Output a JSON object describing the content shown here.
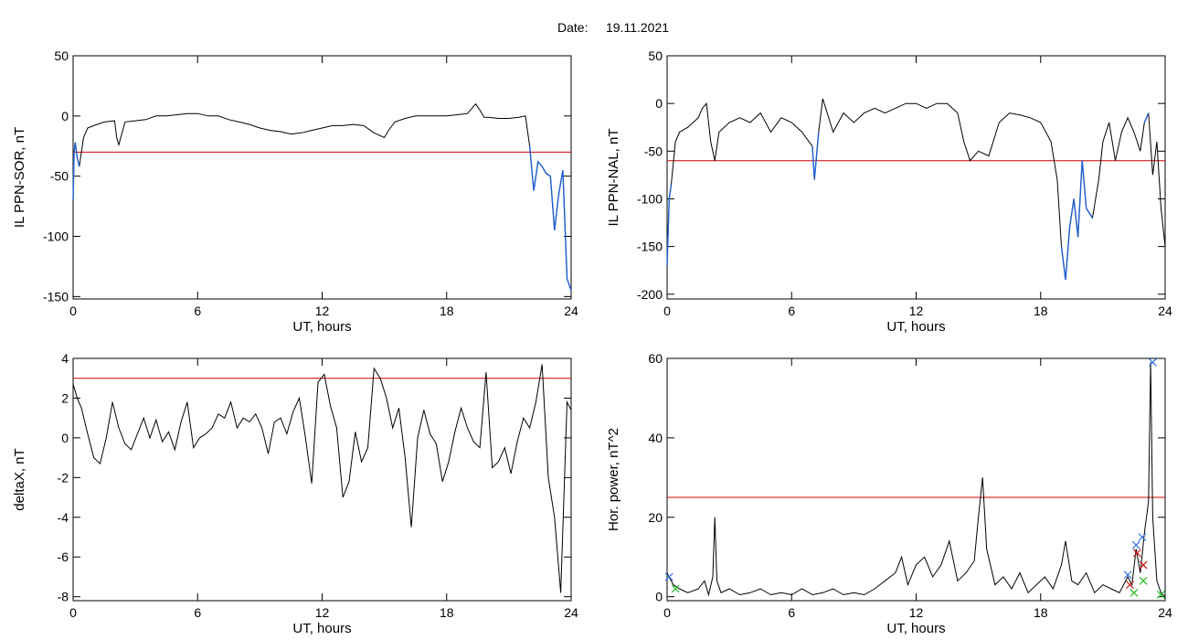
{
  "header": {
    "date_label": "Date:",
    "date_value": "19.11.2021"
  },
  "colors": {
    "trace": "#000000",
    "threshold": "#d40000",
    "highlight": "#1f5fd0",
    "marker_blue": "#2f6fe0",
    "marker_red": "#d01010",
    "marker_green": "#22c022"
  },
  "chart_data": [
    {
      "id": "sor",
      "type": "line",
      "ylabel": "IL PPN-SOR, nT",
      "xlabel": "UT, hours",
      "xlim": [
        0,
        24
      ],
      "ylim": [
        -152,
        50
      ],
      "xticks": [
        "0",
        "6",
        "12",
        "18",
        "24"
      ],
      "yticks": [
        "50",
        "0",
        "-50",
        "-100",
        "-150"
      ],
      "ytick_values": [
        50,
        0,
        -50,
        -100,
        -150
      ],
      "threshold": -30,
      "series": [
        {
          "x": [
            0,
            0.05,
            0.1,
            0.2,
            0.3,
            0.5,
            0.7,
            1.0,
            1.5,
            2.0,
            2.1,
            2.2,
            2.5,
            3.0,
            3.5,
            4.0,
            4.5,
            5.0,
            5.5,
            6.0,
            6.5,
            7.0,
            7.5,
            8.0,
            8.5,
            9.0,
            9.5,
            10.0,
            10.5,
            11.0,
            11.5,
            12.0,
            12.5,
            13.0,
            13.5,
            14.0,
            14.5,
            15.0,
            15.2,
            15.5,
            16.0,
            16.5,
            17.0,
            17.5,
            18.0,
            18.5,
            19.0,
            19.4,
            19.6,
            19.8,
            20.0,
            20.5,
            21.0,
            21.5,
            21.8,
            22.0,
            22.2,
            22.4,
            22.6,
            22.8,
            23.0,
            23.2,
            23.4,
            23.6,
            23.8,
            24.0
          ],
          "y": [
            -70,
            -30,
            -22,
            -35,
            -42,
            -18,
            -10,
            -8,
            -5,
            -4,
            -18,
            -24,
            -5,
            -4,
            -3,
            0,
            0,
            1,
            2,
            2,
            0,
            0,
            -3,
            -5,
            -7,
            -10,
            -12,
            -13,
            -15,
            -14,
            -12,
            -10,
            -8,
            -8,
            -7,
            -8,
            -14,
            -18,
            -12,
            -5,
            -2,
            0,
            0,
            0,
            0,
            1,
            2,
            10,
            5,
            -1,
            -1,
            -2,
            -2,
            -1,
            0,
            -25,
            -62,
            -38,
            -42,
            -48,
            -50,
            -95,
            -65,
            -45,
            -135,
            -145
          ]
        }
      ],
      "highlight_ranges": [
        [
          0,
          0.3
        ],
        [
          21.9,
          24
        ]
      ]
    },
    {
      "id": "nal",
      "type": "line",
      "ylabel": "IL PPN-NAL, nT",
      "xlabel": "UT, hours",
      "xlim": [
        0,
        24
      ],
      "ylim": [
        -205,
        50
      ],
      "xticks": [
        "0",
        "6",
        "12",
        "18",
        "24"
      ],
      "yticks": [
        "50",
        "0",
        "-50",
        "-100",
        "-150",
        "-200"
      ],
      "ytick_values": [
        50,
        0,
        -50,
        -100,
        -150,
        -200
      ],
      "threshold": -60,
      "series": [
        {
          "x": [
            0,
            0.1,
            0.2,
            0.4,
            0.6,
            1.0,
            1.5,
            1.7,
            1.9,
            2.1,
            2.3,
            2.5,
            3.0,
            3.5,
            4.0,
            4.5,
            5.0,
            5.5,
            6.0,
            6.5,
            7.0,
            7.1,
            7.3,
            7.5,
            8.0,
            8.5,
            9.0,
            9.5,
            10.0,
            10.5,
            11.0,
            11.5,
            12.0,
            12.5,
            13.0,
            13.5,
            14.0,
            14.3,
            14.6,
            15.0,
            15.5,
            16.0,
            16.5,
            17.0,
            17.5,
            18.0,
            18.5,
            18.8,
            19.0,
            19.2,
            19.4,
            19.6,
            19.8,
            20.0,
            20.2,
            20.5,
            20.8,
            21.0,
            21.3,
            21.6,
            21.9,
            22.2,
            22.5,
            22.8,
            23.0,
            23.2,
            23.4,
            23.6,
            23.8,
            24.0
          ],
          "y": [
            -170,
            -100,
            -85,
            -40,
            -30,
            -25,
            -15,
            -5,
            0,
            -40,
            -60,
            -30,
            -20,
            -15,
            -20,
            -10,
            -30,
            -15,
            -20,
            -30,
            -45,
            -80,
            -30,
            5,
            -30,
            -10,
            -20,
            -10,
            -5,
            -10,
            -5,
            0,
            0,
            -5,
            0,
            0,
            -10,
            -40,
            -60,
            -50,
            -55,
            -20,
            -10,
            -12,
            -15,
            -20,
            -40,
            -80,
            -150,
            -185,
            -130,
            -100,
            -140,
            -60,
            -110,
            -120,
            -80,
            -40,
            -20,
            -60,
            -30,
            -15,
            -30,
            -50,
            -20,
            -10,
            -75,
            -40,
            -110,
            -150
          ]
        }
      ],
      "highlight_ranges": [
        [
          0,
          0.3
        ],
        [
          7.0,
          7.4
        ],
        [
          18.9,
          20.6
        ],
        [
          22.9,
          23.2
        ]
      ]
    },
    {
      "id": "deltax",
      "type": "line",
      "ylabel": "deltaX, nT",
      "xlabel": "UT, hours",
      "xlim": [
        0,
        24
      ],
      "ylim": [
        -8.2,
        4
      ],
      "xticks": [
        "0",
        "6",
        "12",
        "18",
        "24"
      ],
      "yticks": [
        "4",
        "2",
        "0",
        "-2",
        "-4",
        "-6",
        "-8"
      ],
      "ytick_values": [
        4,
        2,
        0,
        -2,
        -4,
        -6,
        -8
      ],
      "threshold": 3,
      "series": [
        {
          "x": [
            0,
            0.2,
            0.4,
            0.7,
            1.0,
            1.3,
            1.6,
            1.9,
            2.2,
            2.5,
            2.8,
            3.1,
            3.4,
            3.7,
            4.0,
            4.3,
            4.6,
            4.9,
            5.2,
            5.5,
            5.8,
            6.1,
            6.4,
            6.7,
            7.0,
            7.3,
            7.6,
            7.9,
            8.2,
            8.5,
            8.8,
            9.1,
            9.4,
            9.7,
            10.0,
            10.3,
            10.6,
            10.9,
            11.2,
            11.5,
            11.8,
            12.1,
            12.4,
            12.7,
            13.0,
            13.3,
            13.6,
            13.9,
            14.2,
            14.5,
            14.8,
            15.1,
            15.4,
            15.7,
            16.0,
            16.3,
            16.6,
            16.9,
            17.2,
            17.5,
            17.8,
            18.1,
            18.4,
            18.7,
            19.0,
            19.3,
            19.6,
            19.9,
            20.2,
            20.5,
            20.8,
            21.1,
            21.4,
            21.7,
            22.0,
            22.3,
            22.6,
            22.9,
            23.2,
            23.5,
            23.8,
            24.0
          ],
          "y": [
            2.7,
            2.0,
            1.5,
            0.2,
            -1.0,
            -1.3,
            0.0,
            1.8,
            0.5,
            -0.3,
            -0.6,
            0.2,
            1.0,
            0.0,
            0.9,
            -0.2,
            0.3,
            -0.6,
            0.8,
            1.8,
            -0.5,
            0.0,
            0.2,
            0.5,
            1.2,
            1.0,
            1.8,
            0.5,
            1.0,
            0.8,
            1.2,
            0.5,
            -0.8,
            0.8,
            1.0,
            0.2,
            1.3,
            2.0,
            0.0,
            -2.3,
            2.8,
            3.2,
            1.6,
            0.5,
            -3.0,
            -2.2,
            0.3,
            -1.2,
            -0.5,
            3.5,
            3.0,
            2.0,
            0.5,
            1.5,
            -1.0,
            -4.5,
            0.0,
            1.4,
            0.2,
            -0.3,
            -2.2,
            -1.2,
            0.3,
            1.5,
            0.5,
            -0.2,
            -0.5,
            3.3,
            -1.5,
            -1.2,
            -0.5,
            -1.8,
            -0.2,
            1.0,
            0.5,
            1.8,
            3.7,
            -2.0,
            -4.0,
            -7.8,
            1.8,
            1.4
          ]
        }
      ],
      "highlight_ranges": []
    },
    {
      "id": "power",
      "type": "line",
      "ylabel": "Hor. power, nT^2",
      "xlabel": "UT, hours",
      "xlim": [
        0,
        24
      ],
      "ylim": [
        -1,
        60
      ],
      "xticks": [
        "0",
        "6",
        "12",
        "18",
        "24"
      ],
      "yticks": [
        "60",
        "40",
        "20",
        "0"
      ],
      "ytick_values": [
        60,
        40,
        20,
        0
      ],
      "threshold": 25,
      "series": [
        {
          "x": [
            0,
            0.3,
            0.6,
            1.0,
            1.5,
            1.8,
            2.0,
            2.2,
            2.3,
            2.4,
            2.6,
            3.0,
            3.5,
            4.0,
            4.5,
            5.0,
            5.5,
            6.0,
            6.5,
            7.0,
            7.5,
            8.0,
            8.5,
            9.0,
            9.5,
            10.0,
            10.5,
            11.0,
            11.3,
            11.6,
            12.0,
            12.4,
            12.8,
            13.2,
            13.6,
            14.0,
            14.4,
            14.8,
            15.0,
            15.2,
            15.4,
            15.8,
            16.2,
            16.6,
            17.0,
            17.4,
            17.8,
            18.2,
            18.6,
            19.0,
            19.2,
            19.5,
            19.8,
            20.2,
            20.6,
            21.0,
            21.4,
            21.8,
            22.2,
            22.4,
            22.6,
            22.8,
            23.0,
            23.2,
            23.3,
            23.4,
            23.6,
            23.8,
            24.0
          ],
          "y": [
            6,
            3,
            2,
            1,
            2,
            4,
            0.5,
            5,
            20,
            4,
            1,
            2,
            0.5,
            1,
            2,
            0.5,
            1,
            0.5,
            2,
            0.5,
            1,
            2,
            0.5,
            1,
            0.5,
            2,
            4,
            6,
            10,
            3,
            8,
            10,
            5,
            8,
            14,
            4,
            6,
            9,
            20,
            30,
            12,
            3,
            5,
            2,
            6,
            1,
            3,
            5,
            2,
            8,
            14,
            4,
            3,
            6,
            1,
            3,
            2,
            1,
            5,
            3,
            12,
            6,
            16,
            24,
            59,
            20,
            4,
            1,
            0
          ]
        }
      ],
      "markers": [
        {
          "x": 0.1,
          "y": 5,
          "color": "marker_blue"
        },
        {
          "x": 0.4,
          "y": 2,
          "color": "marker_green"
        },
        {
          "x": 22.2,
          "y": 5.5,
          "color": "marker_blue"
        },
        {
          "x": 22.3,
          "y": 3,
          "color": "marker_red"
        },
        {
          "x": 22.5,
          "y": 1,
          "color": "marker_green"
        },
        {
          "x": 22.6,
          "y": 13,
          "color": "marker_blue"
        },
        {
          "x": 22.65,
          "y": 11,
          "color": "marker_red"
        },
        {
          "x": 22.9,
          "y": 15,
          "color": "marker_blue"
        },
        {
          "x": 22.95,
          "y": 8,
          "color": "marker_red"
        },
        {
          "x": 22.95,
          "y": 4,
          "color": "marker_green"
        },
        {
          "x": 23.4,
          "y": 59,
          "color": "marker_blue"
        },
        {
          "x": 23.8,
          "y": 0.5,
          "color": "marker_green"
        }
      ],
      "highlight_ranges": []
    }
  ]
}
